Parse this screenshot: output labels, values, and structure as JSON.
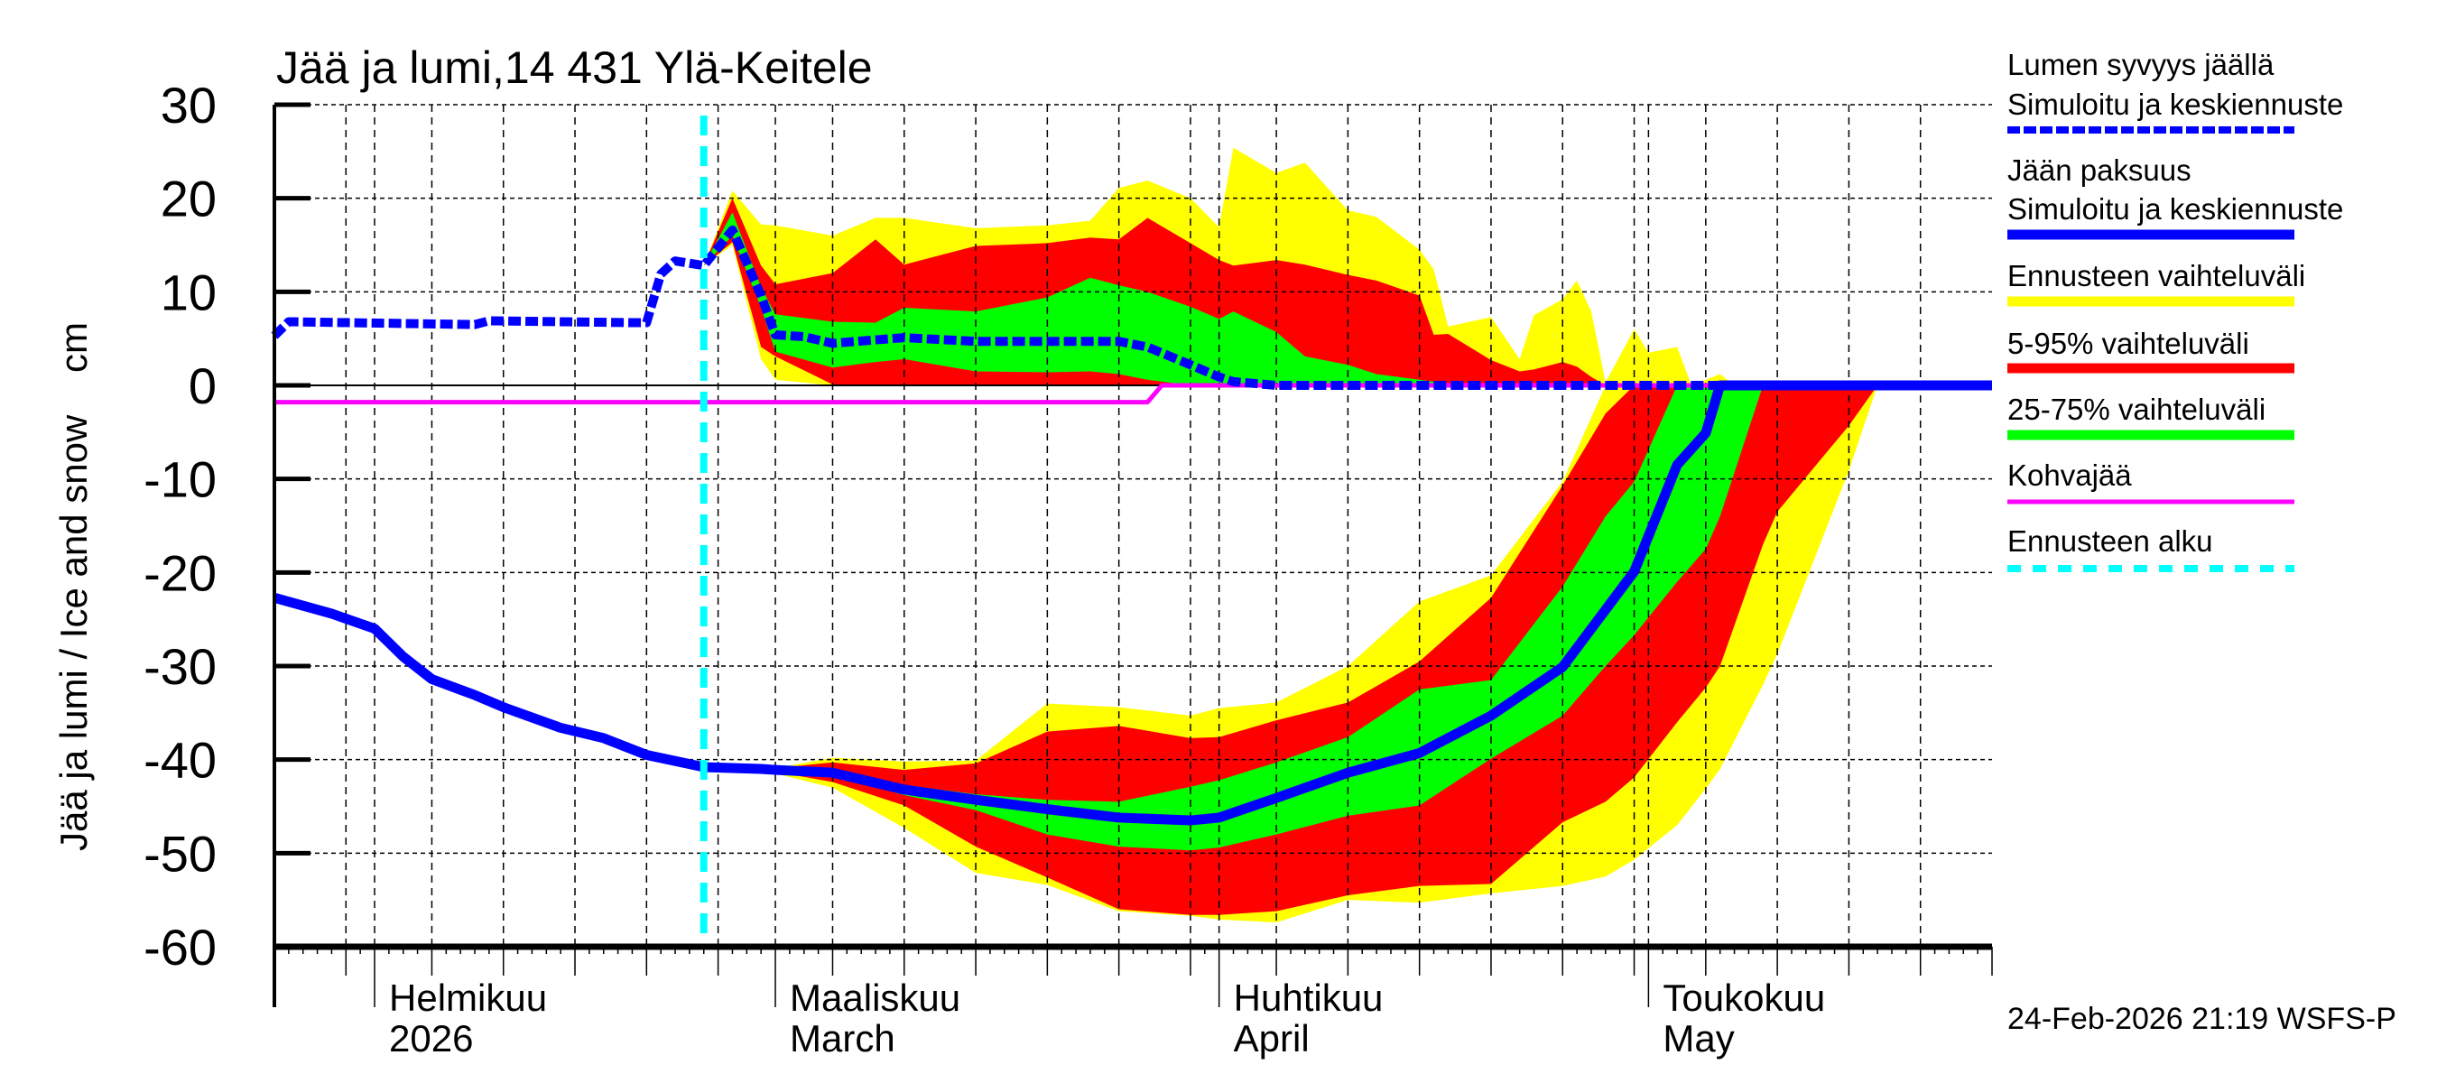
{
  "title": "Jää ja lumi,14 431 Ylä-Keitele",
  "timestamp": "24-Feb-2026 21:19 WSFS-P",
  "legend": [
    {
      "line1": "Lumen syvyys jäällä",
      "line2": "Simuloitu ja keskiennuste",
      "color": "#0000ff",
      "style": "dashed"
    },
    {
      "line1": "Jään paksuus",
      "line2": "Simuloitu ja keskiennuste",
      "color": "#0000ff",
      "style": "solid-thick"
    },
    {
      "line1": "Ennusteen vaihteluväli",
      "color": "#ffff00",
      "style": "band"
    },
    {
      "line1": "5-95% vaihteluväli",
      "color": "#ff0000",
      "style": "band"
    },
    {
      "line1": "25-75% vaihteluväli",
      "color": "#00ff00",
      "style": "band"
    },
    {
      "line1": "Kohvajää",
      "color": "#ff00ff",
      "style": "solid"
    },
    {
      "line1": "Ennusteen alku",
      "color": "#00ffff",
      "style": "dashed"
    }
  ],
  "chart_data": {
    "type": "area",
    "title": "Jää ja lumi,14 431 Ylä-Keitele",
    "ylabel": "Jää ja lumi / Ice and snow    cm",
    "xlabel": "",
    "ylim": [
      -60,
      30
    ],
    "xlim": [
      "2026-01-25",
      "2026-05-25"
    ],
    "yticks": [
      "30",
      "20",
      "10",
      "0",
      "-10",
      "-20",
      "-30",
      "-40",
      "-50",
      "-60"
    ],
    "grid": true,
    "legend_position": "right",
    "forecast_start": "2026-02-24",
    "x_month_labels": [
      {
        "date": "2026-02-01",
        "line1": "Helmikuu",
        "line2": "2026"
      },
      {
        "date": "2026-03-01",
        "line1": "Maaliskuu",
        "line2": "March"
      },
      {
        "date": "2026-04-01",
        "line1": "Huhtikuu",
        "line2": "April"
      },
      {
        "date": "2026-05-01",
        "line1": "Toukokuu",
        "line2": "May"
      }
    ],
    "snow_bands": {
      "dates": [
        "2026-02-24",
        "2026-02-26",
        "2026-02-28",
        "2026-03-01",
        "2026-03-05",
        "2026-03-08",
        "2026-03-10",
        "2026-03-15",
        "2026-03-20",
        "2026-03-23",
        "2026-03-25",
        "2026-03-27",
        "2026-03-30",
        "2026-04-01",
        "2026-04-02",
        "2026-04-05",
        "2026-04-07",
        "2026-04-10",
        "2026-04-12",
        "2026-04-15",
        "2026-04-16",
        "2026-04-17",
        "2026-04-20",
        "2026-04-22",
        "2026-04-23",
        "2026-04-25",
        "2026-04-26",
        "2026-04-27",
        "2026-04-28",
        "2026-04-30",
        "2026-05-01",
        "2026-05-03",
        "2026-05-04",
        "2026-05-06",
        "2026-05-07",
        "2026-05-25"
      ],
      "range_max": [
        12.8,
        20.8,
        17.2,
        17.1,
        16,
        17.9,
        17.9,
        16.8,
        17.1,
        17.6,
        21.1,
        21.9,
        20,
        16.9,
        25.4,
        22.7,
        23.8,
        18.7,
        18,
        14.5,
        12.4,
        6.3,
        7.3,
        2.8,
        7.5,
        9.2,
        11.2,
        7.9,
        0.3,
        6,
        3.5,
        4.1,
        0,
        1.2,
        0,
        0
      ],
      "range_min": [
        12.8,
        15,
        2.8,
        0.6,
        0,
        0,
        0,
        0,
        0,
        0,
        0,
        0,
        0,
        0,
        0,
        0,
        0,
        0,
        0,
        0,
        0,
        0,
        0,
        0,
        0,
        0,
        0,
        0,
        0,
        0,
        0,
        0,
        0,
        0,
        0,
        0
      ],
      "p95": [
        12.8,
        20,
        12.8,
        10.8,
        12,
        15.6,
        12.9,
        14.9,
        15.2,
        15.8,
        15.6,
        17.9,
        15.2,
        13.4,
        12.8,
        13.4,
        12.9,
        11.8,
        11.2,
        9.6,
        5.4,
        5.5,
        2.7,
        1.5,
        1.7,
        2.5,
        2,
        0.9,
        0,
        0,
        0,
        0,
        0,
        0,
        0,
        0
      ],
      "p5": [
        12.8,
        15.3,
        4.1,
        3.1,
        0.1,
        0,
        0,
        0,
        0,
        0,
        0,
        0,
        0,
        0,
        0,
        0,
        0,
        0,
        0,
        0,
        0,
        0,
        0,
        0,
        0,
        0,
        0,
        0,
        0,
        0,
        0,
        0,
        0,
        0,
        0,
        0
      ],
      "p75": [
        12.8,
        18.5,
        10.5,
        7.6,
        6.8,
        6.7,
        8.3,
        7.9,
        9.4,
        11.5,
        10.7,
        10,
        8.4,
        7.1,
        7.9,
        5.7,
        3.1,
        2.2,
        1.2,
        0.6,
        0.4,
        0,
        0,
        0,
        0,
        0,
        0,
        0,
        0,
        0,
        0,
        0,
        0,
        0,
        0,
        0
      ],
      "p25": [
        12.8,
        16,
        8.3,
        3.6,
        1.9,
        2.5,
        2.8,
        1.5,
        1.4,
        1.5,
        1.2,
        0.6,
        0,
        0,
        0,
        0,
        0,
        0,
        0,
        0,
        0,
        0,
        0,
        0,
        0,
        0,
        0,
        0,
        0,
        0,
        0,
        0,
        0,
        0,
        0,
        0
      ]
    },
    "ice_bands": {
      "dates": [
        "2026-02-24",
        "2026-02-28",
        "2026-03-01",
        "2026-03-05",
        "2026-03-10",
        "2026-03-15",
        "2026-03-20",
        "2026-03-25",
        "2026-03-30",
        "2026-04-01",
        "2026-04-05",
        "2026-04-10",
        "2026-04-15",
        "2026-04-20",
        "2026-04-25",
        "2026-04-28",
        "2026-04-30",
        "2026-05-03",
        "2026-05-05",
        "2026-05-06",
        "2026-05-09",
        "2026-05-10",
        "2026-05-15",
        "2026-05-17",
        "2026-05-25"
      ],
      "range_max": [
        -40.8,
        -40.8,
        -40.9,
        -39.8,
        -40.2,
        -40.1,
        -34,
        -34.4,
        -35.3,
        -34.5,
        -33.9,
        -30,
        -23.1,
        -20.3,
        -10.3,
        0,
        0,
        0,
        0,
        0,
        0,
        0,
        0,
        0,
        0
      ],
      "range_min": [
        -40.8,
        -41.2,
        -41.5,
        -43,
        -47.3,
        -52.1,
        -53.4,
        -56.2,
        -56.7,
        -57.1,
        -57.4,
        -55,
        -55.3,
        -54.3,
        -53.5,
        -52.5,
        -50.7,
        -47,
        -43.1,
        -41,
        -32,
        -28.7,
        -9.1,
        0,
        0
      ],
      "p95": [
        -40.8,
        -40.8,
        -40.9,
        -40.3,
        -41.1,
        -40.4,
        -37,
        -36.4,
        -37.7,
        -37.6,
        -35.8,
        -33.9,
        -29.5,
        -22.7,
        -10.7,
        -3,
        0,
        0,
        0,
        0,
        0,
        0,
        0,
        0,
        0
      ],
      "p5": [
        -40.8,
        -41.1,
        -41.3,
        -42.4,
        -44.9,
        -49.3,
        -52.6,
        -56,
        -56.6,
        -56.6,
        -56.2,
        -54.5,
        -53.5,
        -53.3,
        -46.7,
        -44.5,
        -41.9,
        -36,
        -32.3,
        -30,
        -17,
        -13.5,
        -4.3,
        0,
        0
      ],
      "p75": [
        -40.8,
        -40.9,
        -40.9,
        -40.9,
        -42.7,
        -43.7,
        -44.3,
        -44.5,
        -42.9,
        -42.2,
        -40.3,
        -37.6,
        -32.5,
        -31.5,
        -21.5,
        -14,
        -10.3,
        0,
        0,
        0,
        0,
        0,
        0,
        0,
        0
      ],
      "p25": [
        -40.8,
        -41,
        -41.1,
        -41.7,
        -43.8,
        -45.4,
        -48,
        -49.3,
        -49.7,
        -49.4,
        -48,
        -46,
        -44.9,
        -39.9,
        -35.3,
        -30,
        -26.7,
        -21,
        -17.5,
        -14,
        0,
        0,
        0,
        0,
        0
      ]
    },
    "series": [
      {
        "name": "Lumen syvyys jäällä",
        "color": "#0000ff",
        "style": "dashed",
        "dates": [
          "2026-01-25",
          "2026-01-26",
          "2026-02-08",
          "2026-02-09",
          "2026-02-19",
          "2026-02-20",
          "2026-02-21",
          "2026-02-22",
          "2026-02-24",
          "2026-02-26",
          "2026-02-28",
          "2026-03-01",
          "2026-03-03",
          "2026-03-05",
          "2026-03-10",
          "2026-03-15",
          "2026-03-20",
          "2026-03-25",
          "2026-03-27",
          "2026-03-30",
          "2026-04-01",
          "2026-04-02",
          "2026-04-05",
          "2026-05-25"
        ],
        "values": [
          5.3,
          6.8,
          6.5,
          6.9,
          6.7,
          6.7,
          11.9,
          13.3,
          12.8,
          16.6,
          9.6,
          5.4,
          5.2,
          4.5,
          5.1,
          4.7,
          4.7,
          4.7,
          4.1,
          2.2,
          0.9,
          0.4,
          0,
          0
        ]
      },
      {
        "name": "Jään paksuus",
        "color": "#0000ff",
        "style": "solid",
        "dates": [
          "2026-01-25",
          "2026-01-29",
          "2026-02-01",
          "2026-02-03",
          "2026-02-05",
          "2026-02-08",
          "2026-02-10",
          "2026-02-14",
          "2026-02-17",
          "2026-02-20",
          "2026-02-24",
          "2026-02-28",
          "2026-03-01",
          "2026-03-05",
          "2026-03-10",
          "2026-03-15",
          "2026-03-20",
          "2026-03-25",
          "2026-03-30",
          "2026-04-01",
          "2026-04-05",
          "2026-04-10",
          "2026-04-15",
          "2026-04-20",
          "2026-04-25",
          "2026-04-30",
          "2026-05-03",
          "2026-05-05",
          "2026-05-06",
          "2026-05-25"
        ],
        "values": [
          -22.7,
          -24.4,
          -26,
          -29,
          -31.4,
          -33.1,
          -34.4,
          -36.6,
          -37.7,
          -39.5,
          -40.8,
          -41,
          -41.1,
          -41.4,
          -43.2,
          -44.3,
          -45.3,
          -46.2,
          -46.5,
          -46.2,
          -44.1,
          -41.4,
          -39.3,
          -35.3,
          -30.1,
          -19.9,
          -8.5,
          -5.1,
          0,
          0
        ]
      },
      {
        "name": "Kohvajää",
        "color": "#ff00ff",
        "style": "solid",
        "dates": [
          "2026-01-25",
          "2026-03-27",
          "2026-03-28",
          "2026-05-25"
        ],
        "values": [
          -1.8,
          -1.8,
          0,
          0
        ]
      }
    ]
  }
}
